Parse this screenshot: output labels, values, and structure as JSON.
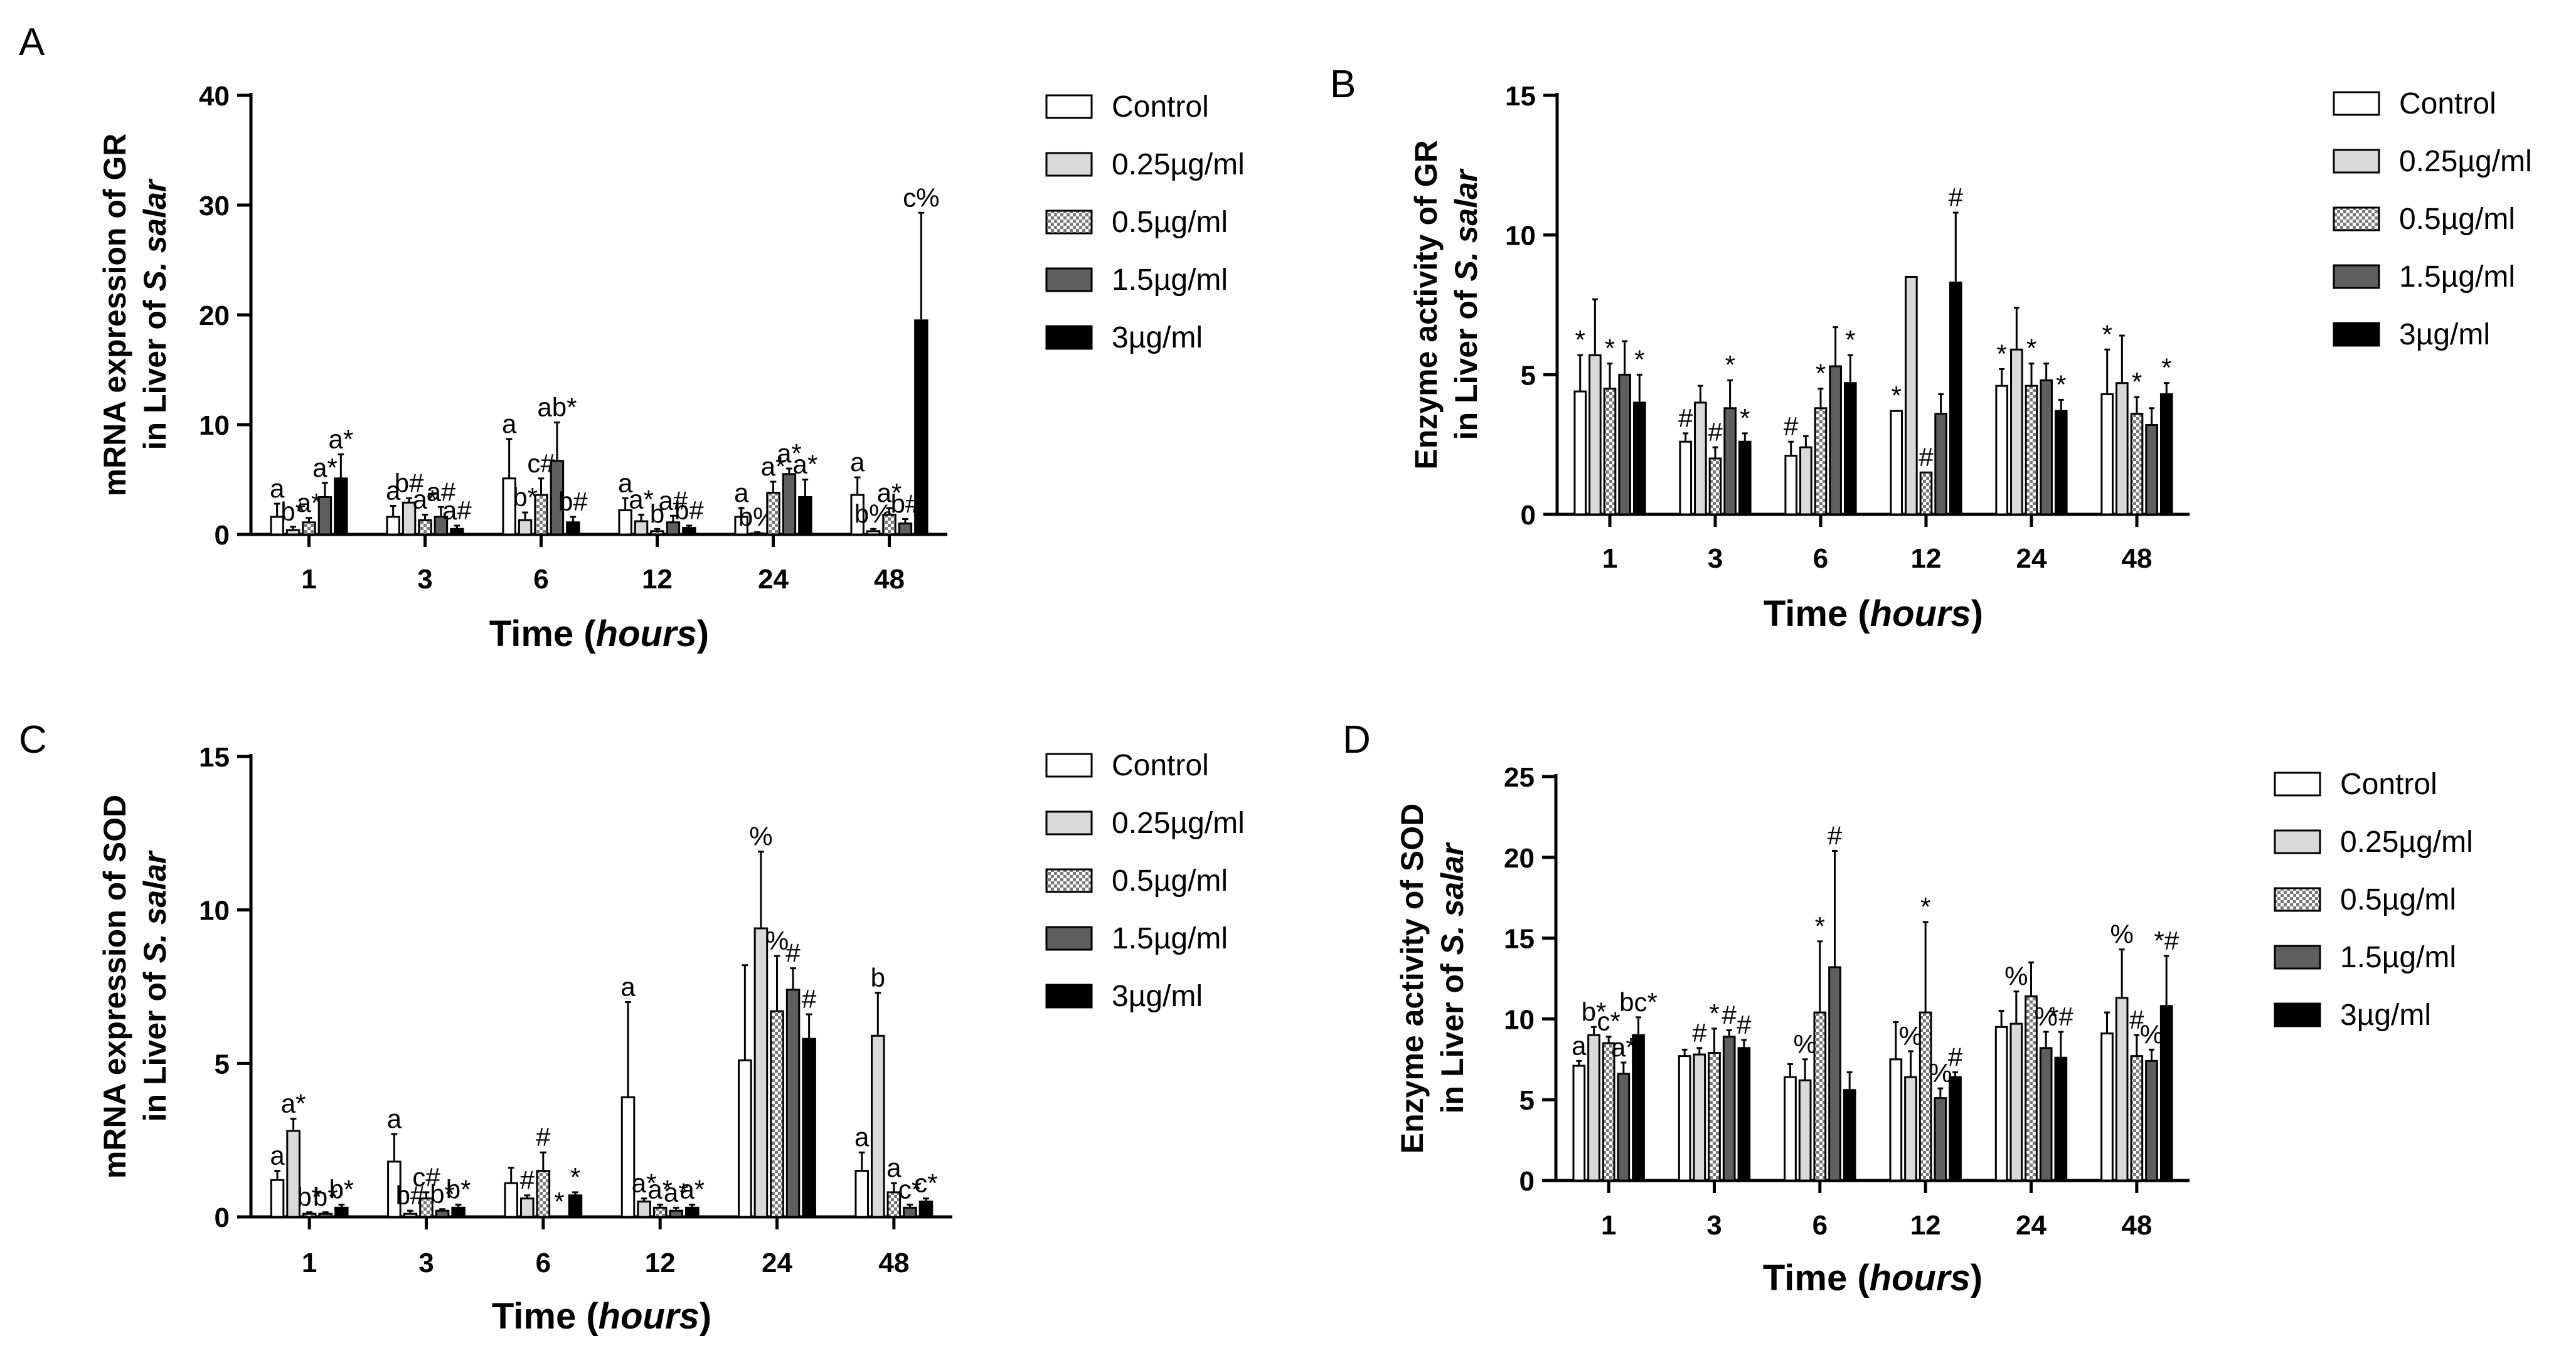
{
  "figure": {
    "series_names": [
      "Control",
      "0.25µg/ml",
      "0.5µg/ml",
      "1.5µg/ml",
      "3µg/ml"
    ],
    "series_colors": [
      "#ffffff",
      "#d9d9d9",
      "pattern",
      "#5f5f5f",
      "#000000"
    ]
  },
  "chart_data": [
    {
      "id": "A",
      "type": "bar",
      "panel_label": "A",
      "ylabel_line1": "mRNA expression of GR",
      "ylabel_line2_prefix": "in Liver of ",
      "ylabel_line2_italic": "S. salar",
      "xlabel_prefix": "Time (",
      "xlabel_italic": "hours",
      "xlabel_suffix": ")",
      "categories": [
        "1",
        "3",
        "6",
        "12",
        "24",
        "48"
      ],
      "ylim": [
        0,
        40
      ],
      "yticks": [
        "0",
        "10",
        "20",
        "30",
        "40"
      ],
      "series": [
        {
          "name": "Control",
          "values": [
            1.6,
            1.6,
            5.1,
            2.2,
            1.6,
            3.6
          ],
          "errors": [
            1.2,
            1.0,
            3.6,
            1.1,
            0.8,
            1.6
          ],
          "labels": [
            "a",
            "a",
            "a",
            "a",
            "a",
            "a"
          ]
        },
        {
          "name": "0.25µg/ml",
          "values": [
            0.4,
            2.9,
            1.3,
            1.2,
            0.1,
            0.3
          ],
          "errors": [
            0.3,
            0.4,
            0.7,
            0.6,
            0.1,
            0.2
          ],
          "labels": [
            "b*",
            "b#",
            "b*",
            "a*",
            "b%",
            "b%"
          ]
        },
        {
          "name": "0.5µg/ml",
          "values": [
            1.1,
            1.3,
            3.6,
            0.3,
            3.8,
            1.8
          ],
          "errors": [
            0.4,
            0.5,
            1.5,
            0.2,
            1.0,
            0.6
          ],
          "labels": [
            "a*",
            "a*",
            "c#",
            "b",
            "a*",
            "a*"
          ]
        },
        {
          "name": "1.5µg/ml",
          "values": [
            3.4,
            1.6,
            6.7,
            1.1,
            5.5,
            1.0
          ],
          "errors": [
            1.3,
            0.9,
            3.5,
            0.6,
            0.5,
            0.4
          ],
          "labels": [
            "a*",
            "a#",
            "ab*",
            "a#",
            "a*",
            "b#"
          ]
        },
        {
          "name": "3µg/ml",
          "values": [
            5.1,
            0.5,
            1.1,
            0.6,
            3.4,
            19.5
          ],
          "errors": [
            2.2,
            0.3,
            0.5,
            0.2,
            1.6,
            9.8
          ],
          "labels": [
            "a*",
            "a#",
            "b#",
            "b#",
            "a*",
            "c%"
          ]
        }
      ]
    },
    {
      "id": "B",
      "type": "bar",
      "panel_label": "B",
      "ylabel_line1": "Enzyme activity of GR",
      "ylabel_line2_prefix": "in Liver of ",
      "ylabel_line2_italic": "S. salar",
      "xlabel_prefix": "Time (",
      "xlabel_italic": "hours",
      "xlabel_suffix": ")",
      "categories": [
        "1",
        "3",
        "6",
        "12",
        "24",
        "48"
      ],
      "ylim": [
        0,
        15
      ],
      "yticks": [
        "0",
        "5",
        "10",
        "15"
      ],
      "series": [
        {
          "name": "Control",
          "values": [
            4.4,
            2.6,
            2.1,
            3.7,
            4.6,
            4.3
          ],
          "errors": [
            1.3,
            0.3,
            0.5,
            0.0,
            0.6,
            1.6
          ],
          "labels": [
            "*",
            "#",
            "#",
            "*",
            "*",
            "*"
          ]
        },
        {
          "name": "0.25µg/ml",
          "values": [
            5.7,
            4.0,
            2.4,
            8.5,
            5.9,
            4.7
          ],
          "errors": [
            2.0,
            0.6,
            0.4,
            0.0,
            1.5,
            1.7
          ],
          "labels": [
            "",
            "",
            "",
            "",
            "",
            ""
          ]
        },
        {
          "name": "0.5µg/ml",
          "values": [
            4.5,
            2.0,
            3.8,
            1.5,
            4.6,
            3.6
          ],
          "errors": [
            0.9,
            0.4,
            0.7,
            0.0,
            0.8,
            0.6
          ],
          "labels": [
            "*",
            "#",
            "*",
            "#",
            "*",
            "*"
          ]
        },
        {
          "name": "1.5µg/ml",
          "values": [
            5.0,
            3.8,
            5.3,
            3.6,
            4.8,
            3.2
          ],
          "errors": [
            1.2,
            1.0,
            1.4,
            0.7,
            0.6,
            0.6
          ],
          "labels": [
            "",
            "*",
            "",
            "",
            "",
            ""
          ]
        },
        {
          "name": "3µg/ml",
          "values": [
            4.0,
            2.6,
            4.7,
            8.3,
            3.7,
            4.3
          ],
          "errors": [
            1.0,
            0.3,
            1.0,
            2.5,
            0.4,
            0.4
          ],
          "labels": [
            "*",
            "*",
            "*",
            "#",
            "*",
            "*"
          ]
        }
      ]
    },
    {
      "id": "C",
      "type": "bar",
      "panel_label": "C",
      "ylabel_line1": "mRNA expression of SOD",
      "ylabel_line2_prefix": "in Liver of ",
      "ylabel_line2_italic": "S. salar",
      "xlabel_prefix": "Time (",
      "xlabel_italic": "hours",
      "xlabel_suffix": ")",
      "categories": [
        "1",
        "3",
        "6",
        "12",
        "24",
        "48"
      ],
      "ylim": [
        0,
        15
      ],
      "yticks": [
        "0",
        "5",
        "10",
        "15"
      ],
      "series": [
        {
          "name": "Control",
          "values": [
            1.2,
            1.8,
            1.1,
            3.9,
            5.1,
            1.5
          ],
          "errors": [
            0.3,
            0.9,
            0.5,
            3.1,
            3.1,
            0.6
          ],
          "labels": [
            "a",
            "a",
            "",
            "a",
            "",
            "a"
          ]
        },
        {
          "name": "0.25µg/ml",
          "values": [
            2.8,
            0.1,
            0.6,
            0.5,
            9.4,
            5.9
          ],
          "errors": [
            0.4,
            0.1,
            0.1,
            0.1,
            2.5,
            1.4
          ],
          "labels": [
            "a*",
            "b#",
            "#",
            "a*",
            "%",
            "b"
          ]
        },
        {
          "name": "0.5µg/ml",
          "values": [
            0.1,
            0.6,
            1.5,
            0.3,
            6.7,
            0.8
          ],
          "errors": [
            0.05,
            0.2,
            0.6,
            0.1,
            1.8,
            0.3
          ],
          "labels": [
            "b*",
            "c#",
            "#",
            "a*",
            "%",
            "a"
          ]
        },
        {
          "name": "1.5µg/ml",
          "values": [
            0.1,
            0.2,
            0.0,
            0.2,
            7.4,
            0.3
          ],
          "errors": [
            0.05,
            0.05,
            0.0,
            0.1,
            0.7,
            0.1
          ],
          "labels": [
            "b*",
            "b*",
            "*",
            "a*",
            "#",
            "c*"
          ]
        },
        {
          "name": "3µg/ml",
          "values": [
            0.3,
            0.3,
            0.7,
            0.3,
            5.8,
            0.5
          ],
          "errors": [
            0.1,
            0.1,
            0.1,
            0.1,
            0.8,
            0.1
          ],
          "labels": [
            "b*",
            "b*",
            "*",
            "a*",
            "#",
            "c*"
          ]
        }
      ]
    },
    {
      "id": "D",
      "type": "bar",
      "panel_label": "D",
      "ylabel_line1": "Enzyme activity of SOD",
      "ylabel_line2_prefix": "in Liver of ",
      "ylabel_line2_italic": "S. salar",
      "xlabel_prefix": "Time (",
      "xlabel_italic": "hours",
      "xlabel_suffix": ")",
      "categories": [
        "1",
        "3",
        "6",
        "12",
        "24",
        "48"
      ],
      "ylim": [
        0,
        25
      ],
      "yticks": [
        "0",
        "5",
        "10",
        "15",
        "20",
        "25"
      ],
      "series": [
        {
          "name": "Control",
          "values": [
            7.1,
            7.7,
            6.4,
            7.5,
            9.5,
            9.1
          ],
          "errors": [
            0.3,
            0.4,
            0.8,
            2.3,
            1.0,
            1.3
          ],
          "labels": [
            "a",
            "",
            "",
            "",
            "",
            ""
          ]
        },
        {
          "name": "0.25µg/ml",
          "values": [
            9.0,
            7.8,
            6.2,
            6.4,
            9.7,
            11.3
          ],
          "errors": [
            0.5,
            0.4,
            1.3,
            1.6,
            2.0,
            3.0
          ],
          "labels": [
            "b*",
            "#",
            "%",
            "%",
            "%",
            "%"
          ]
        },
        {
          "name": "0.5µg/ml",
          "values": [
            8.5,
            7.9,
            10.4,
            10.4,
            11.4,
            7.7
          ],
          "errors": [
            0.4,
            1.5,
            4.4,
            5.6,
            2.1,
            1.3
          ],
          "labels": [
            "c*",
            "*",
            "*",
            "*",
            "",
            "#"
          ]
        },
        {
          "name": "1.5µg/ml",
          "values": [
            6.6,
            8.9,
            13.2,
            5.1,
            8.2,
            7.4
          ],
          "errors": [
            0.7,
            0.4,
            7.2,
            0.6,
            1.0,
            0.7
          ],
          "labels": [
            "a*",
            "#",
            "#",
            "%",
            "%",
            "%"
          ]
        },
        {
          "name": "3µg/ml",
          "values": [
            9.0,
            8.2,
            5.6,
            6.4,
            7.6,
            10.8
          ],
          "errors": [
            1.1,
            0.5,
            1.1,
            0.3,
            1.6,
            3.1
          ],
          "labels": [
            "bc*",
            "#",
            "",
            "#",
            "*#",
            "*#"
          ]
        }
      ]
    }
  ]
}
